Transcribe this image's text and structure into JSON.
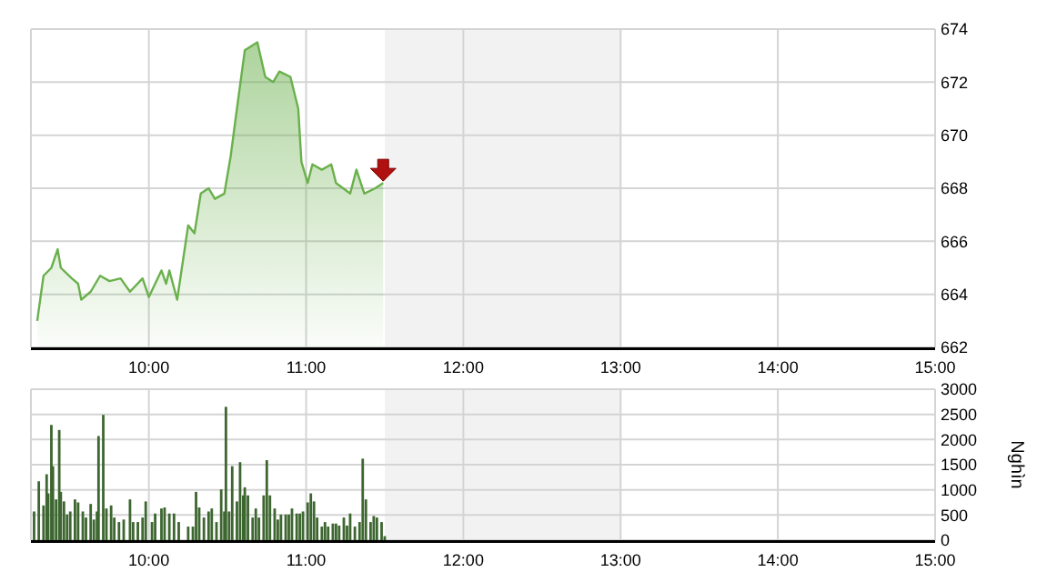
{
  "chart_data": [
    {
      "type": "area",
      "x": [
        9.29,
        9.33,
        9.38,
        9.42,
        9.44,
        9.51,
        9.55,
        9.57,
        9.63,
        9.69,
        9.75,
        9.82,
        9.88,
        9.96,
        10.0,
        10.08,
        10.11,
        10.13,
        10.18,
        10.25,
        10.29,
        10.33,
        10.38,
        10.42,
        10.48,
        10.52,
        10.56,
        10.61,
        10.69,
        10.74,
        10.79,
        10.83,
        10.9,
        10.95,
        10.97,
        11.01,
        11.04,
        11.1,
        11.16,
        11.19,
        11.28,
        11.32,
        11.37,
        11.44,
        11.49
      ],
      "series": [
        {
          "color": "#6ab04c",
          "values": [
            663.0,
            664.7,
            665.0,
            665.7,
            665.0,
            664.6,
            664.4,
            663.8,
            664.1,
            664.7,
            664.5,
            664.6,
            664.1,
            664.6,
            663.9,
            664.9,
            664.4,
            664.9,
            663.8,
            666.6,
            666.3,
            667.8,
            668.0,
            667.6,
            667.8,
            669.2,
            671.0,
            673.2,
            673.5,
            672.2,
            672.0,
            672.4,
            672.2,
            671.0,
            669.0,
            668.2,
            668.9,
            668.7,
            668.9,
            668.2,
            667.8,
            668.7,
            667.8,
            668.0,
            668.2
          ]
        }
      ],
      "xlim": [
        9.25,
        15
      ],
      "xticks": [
        {
          "value": 10,
          "label": "10:00"
        },
        {
          "value": 11,
          "label": "11:00"
        },
        {
          "value": 12,
          "label": "12:00"
        },
        {
          "value": 13,
          "label": "13:00"
        },
        {
          "value": 14,
          "label": "14:00"
        },
        {
          "value": 15,
          "label": "15:00"
        }
      ],
      "ylim": [
        662,
        674
      ],
      "yticks": [
        662,
        664,
        666,
        668,
        670,
        672,
        674
      ],
      "grid": true,
      "bands": [
        {
          "axis": "x",
          "from": 11.5,
          "to": 13,
          "color": "#f2f2f2"
        }
      ]
    },
    {
      "type": "bar",
      "x": [
        9.27,
        9.3,
        9.33,
        9.35,
        9.36,
        9.38,
        9.39,
        9.41,
        9.43,
        9.44,
        9.46,
        9.48,
        9.5,
        9.53,
        9.55,
        9.58,
        9.6,
        9.63,
        9.65,
        9.67,
        9.68,
        9.71,
        9.73,
        9.76,
        9.78,
        9.81,
        9.84,
        9.88,
        9.9,
        9.93,
        9.96,
        9.98,
        10.02,
        10.04,
        10.08,
        10.1,
        10.13,
        10.16,
        10.19,
        10.25,
        10.28,
        10.3,
        10.32,
        10.35,
        10.38,
        10.4,
        10.43,
        10.46,
        10.48,
        10.49,
        10.51,
        10.53,
        10.56,
        10.58,
        10.6,
        10.61,
        10.63,
        10.66,
        10.68,
        10.7,
        10.73,
        10.75,
        10.77,
        10.8,
        10.82,
        10.84,
        10.87,
        10.89,
        10.91,
        10.94,
        10.96,
        10.98,
        11.01,
        11.03,
        11.05,
        11.07,
        11.1,
        11.12,
        11.14,
        11.17,
        11.19,
        11.21,
        11.24,
        11.26,
        11.28,
        11.31,
        11.34,
        11.36,
        11.38,
        11.41,
        11.43,
        11.45,
        11.48,
        11.5
      ],
      "series": [
        {
          "color": "#3d6630",
          "values": [
            570,
            1170,
            690,
            1310,
            930,
            2290,
            1470,
            810,
            2190,
            960,
            770,
            510,
            570,
            810,
            750,
            570,
            450,
            720,
            410,
            570,
            2070,
            2490,
            630,
            690,
            450,
            360,
            410,
            810,
            360,
            360,
            450,
            770,
            360,
            530,
            630,
            650,
            530,
            530,
            360,
            270,
            270,
            960,
            650,
            450,
            570,
            630,
            360,
            1010,
            570,
            2650,
            570,
            1470,
            770,
            1550,
            890,
            1050,
            890,
            450,
            630,
            450,
            890,
            1590,
            890,
            630,
            410,
            510,
            510,
            510,
            630,
            530,
            530,
            570,
            750,
            930,
            770,
            450,
            270,
            360,
            270,
            330,
            330,
            290,
            450,
            290,
            530,
            270,
            360,
            1620,
            810,
            360,
            480,
            450,
            360,
            80
          ]
        }
      ],
      "xlim": [
        9.25,
        15
      ],
      "xticks": [
        {
          "value": 10,
          "label": "10:00"
        },
        {
          "value": 11,
          "label": "11:00"
        },
        {
          "value": 12,
          "label": "12:00"
        },
        {
          "value": 13,
          "label": "13:00"
        },
        {
          "value": 14,
          "label": "14:00"
        },
        {
          "value": 15,
          "label": "15:00"
        }
      ],
      "ylim": [
        0,
        3000
      ],
      "yticks": [
        0,
        500,
        1000,
        1500,
        2000,
        2500,
        3000
      ],
      "grid": true,
      "ylabel": "Nghìn",
      "bands": [
        {
          "axis": "x",
          "from": 11.5,
          "to": 13,
          "color": "#f2f2f2"
        }
      ]
    }
  ]
}
